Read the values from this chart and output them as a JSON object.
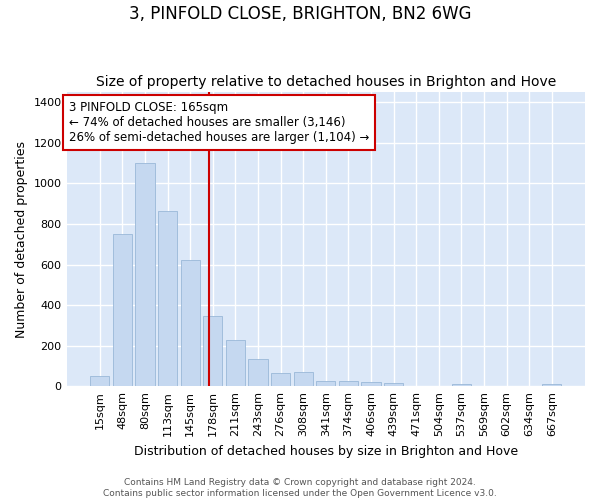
{
  "title": "3, PINFOLD CLOSE, BRIGHTON, BN2 6WG",
  "subtitle": "Size of property relative to detached houses in Brighton and Hove",
  "xlabel": "Distribution of detached houses by size in Brighton and Hove",
  "ylabel": "Number of detached properties",
  "footnote1": "Contains HM Land Registry data © Crown copyright and database right 2024.",
  "footnote2": "Contains public sector information licensed under the Open Government Licence v3.0.",
  "categories": [
    "15sqm",
    "48sqm",
    "80sqm",
    "113sqm",
    "145sqm",
    "178sqm",
    "211sqm",
    "243sqm",
    "276sqm",
    "308sqm",
    "341sqm",
    "374sqm",
    "406sqm",
    "439sqm",
    "471sqm",
    "504sqm",
    "537sqm",
    "569sqm",
    "602sqm",
    "634sqm",
    "667sqm"
  ],
  "values": [
    50,
    750,
    1100,
    865,
    620,
    345,
    230,
    135,
    65,
    70,
    28,
    28,
    20,
    14,
    0,
    0,
    13,
    0,
    0,
    0,
    13
  ],
  "bar_color": "#c5d8f0",
  "bar_edge_color": "#9ab8d8",
  "vline_x": 4.82,
  "vline_color": "#cc0000",
  "annotation_text": "3 PINFOLD CLOSE: 165sqm\n← 74% of detached houses are smaller (3,146)\n26% of semi-detached houses are larger (1,104) →",
  "annotation_box_color": "#cc0000",
  "ylim": [
    0,
    1450
  ],
  "yticks": [
    0,
    200,
    400,
    600,
    800,
    1000,
    1200,
    1400
  ],
  "background_color": "#dce8f8",
  "plot_bg_color": "#dce8f8",
  "fig_bg_color": "#ffffff",
  "grid_color": "#ffffff",
  "title_fontsize": 12,
  "subtitle_fontsize": 10,
  "xlabel_fontsize": 9,
  "ylabel_fontsize": 9,
  "tick_fontsize": 8,
  "footnote_fontsize": 6.5,
  "annot_fontsize": 8.5
}
